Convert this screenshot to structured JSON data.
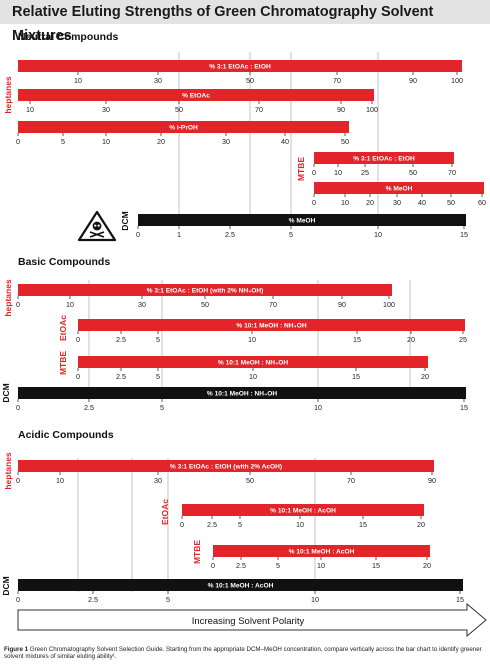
{
  "title": "Relative Eluting Strengths of Green Chromatography Solvent Mixtures",
  "caption": {
    "label": "Figure 1",
    "text": "Green Chromatography Solvent Selection Guide. Starting from the appropriate DCM–MeOH concentration, compare vertically across the bar chart to identify greener solvent mixtures of similar eluting ability¹."
  },
  "arrow_label": "Increasing Solvent Polarity",
  "chart_data": [
    {
      "type": "bar",
      "section": "Neutral Compounds",
      "bars": [
        {
          "group": "heptanes",
          "label": "% 3:1 EtOAc : EtOH",
          "color": "#e3242b",
          "ticks": [
            10,
            30,
            50,
            70,
            90,
            100
          ],
          "tick_labels": [
            "10",
            "30",
            "50",
            "70",
            "90",
            "100"
          ]
        },
        {
          "group": "heptanes",
          "label": "% EtOAc",
          "color": "#e3242b",
          "ticks": [
            10,
            30,
            50,
            70,
            90,
            100
          ],
          "tick_labels": [
            "10",
            "30",
            "50",
            "70",
            "90",
            "100"
          ]
        },
        {
          "group": "heptanes",
          "label": "% i-PrOH",
          "color": "#e3242b",
          "ticks": [
            0,
            5,
            10,
            20,
            30,
            40,
            50
          ],
          "tick_labels": [
            "0",
            "5",
            "10",
            "20",
            "30",
            "40",
            "50"
          ]
        },
        {
          "group": "MTBE",
          "label": "% 3:1 EtOAc : EtOH",
          "color": "#e3242b",
          "ticks": [
            0,
            10,
            25,
            50,
            70
          ],
          "tick_labels": [
            "0",
            "10",
            "25",
            "50",
            "70"
          ]
        },
        {
          "group": "MTBE",
          "label": "% MeOH",
          "color": "#e3242b",
          "ticks": [
            0,
            10,
            20,
            30,
            40,
            50,
            60
          ],
          "tick_labels": [
            "0",
            "10",
            "20",
            "30",
            "40",
            "50",
            "60"
          ]
        },
        {
          "group": "DCM",
          "label": "% MeOH",
          "color": "#111111",
          "ticks": [
            0,
            1,
            2.5,
            5,
            10,
            15
          ],
          "tick_labels": [
            "0",
            "1",
            "2.5",
            "5",
            "10",
            "15"
          ]
        }
      ]
    },
    {
      "type": "bar",
      "section": "Basic Compounds",
      "bars": [
        {
          "group": "heptanes",
          "label": "% 3:1 EtOAc : EtOH (with 2% NH₄OH)",
          "color": "#e3242b",
          "ticks": [
            0,
            10,
            30,
            50,
            70,
            90,
            100
          ],
          "tick_labels": [
            "0",
            "10",
            "30",
            "50",
            "70",
            "90",
            "100"
          ]
        },
        {
          "group": "EtOAc",
          "label": "% 10:1 MeOH : NH₄OH",
          "color": "#e3242b",
          "ticks": [
            0,
            2.5,
            5,
            10,
            15,
            20,
            25
          ],
          "tick_labels": [
            "0",
            "2.5",
            "5",
            "10",
            "15",
            "20",
            "25"
          ]
        },
        {
          "group": "MTBE",
          "label": "% 10:1 MeOH : NH₄OH",
          "color": "#e3242b",
          "ticks": [
            0,
            2.5,
            5,
            10,
            15,
            20
          ],
          "tick_labels": [
            "0",
            "2.5",
            "5",
            "10",
            "15",
            "20"
          ]
        },
        {
          "group": "DCM",
          "label": "% 10:1 MeOH : NH₄OH",
          "color": "#111111",
          "ticks": [
            0,
            2.5,
            5,
            10,
            15
          ],
          "tick_labels": [
            "0",
            "2.5",
            "5",
            "10",
            "15"
          ]
        }
      ]
    },
    {
      "type": "bar",
      "section": "Acidic Compounds",
      "bars": [
        {
          "group": "heptanes",
          "label": "% 3:1 EtOAc : EtOH (with 2% AcOH)",
          "color": "#e3242b",
          "ticks": [
            0,
            10,
            30,
            50,
            70,
            90
          ],
          "tick_labels": [
            "0",
            "10",
            "30",
            "50",
            "70",
            "90"
          ]
        },
        {
          "group": "EtOAc",
          "label": "% 10:1 MeOH : AcOH",
          "color": "#e3242b",
          "ticks": [
            0,
            2.5,
            5,
            10,
            15,
            20
          ],
          "tick_labels": [
            "0",
            "2.5",
            "5",
            "10",
            "15",
            "20"
          ]
        },
        {
          "group": "MTBE",
          "label": "% 10:1 MeOH : AcOH",
          "color": "#e3242b",
          "ticks": [
            0,
            2.5,
            5,
            10,
            15,
            20
          ],
          "tick_labels": [
            "0",
            "2.5",
            "5",
            "10",
            "15",
            "20"
          ]
        },
        {
          "group": "DCM",
          "label": "% 10:1 MeOH : AcOH",
          "color": "#111111",
          "ticks": [
            0,
            2.5,
            5,
            10,
            15
          ],
          "tick_labels": [
            "0",
            "2.5",
            "5",
            "10",
            "15"
          ]
        }
      ]
    }
  ]
}
